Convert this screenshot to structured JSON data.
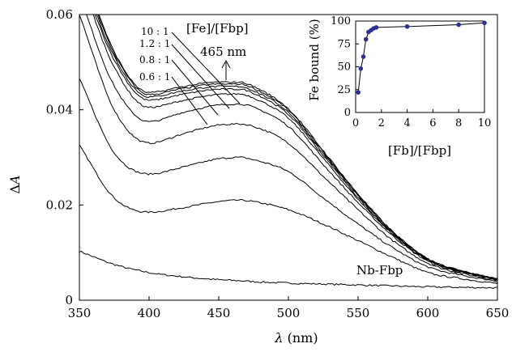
{
  "chart_data": [
    {
      "type": "line",
      "xlabel_symbol": "λ",
      "xlabel_unit": "(nm)",
      "ylabel_symbol": "Δ",
      "ylabel_var": "A",
      "xlim": [
        350,
        650
      ],
      "ylim": [
        0,
        0.06
      ],
      "x_ticks": [
        350,
        400,
        450,
        500,
        550,
        600,
        650
      ],
      "y_ticks": [
        0,
        0.02,
        0.04,
        0.06
      ],
      "x_tick_labels": [
        "350",
        "400",
        "450",
        "500",
        "550",
        "600",
        "650"
      ],
      "y_tick_labels": [
        "0",
        "0.02",
        "0.04",
        "0.06"
      ],
      "grid": false,
      "legend": "none",
      "series_color": "#000000",
      "x_sample": [
        350,
        375,
        400,
        425,
        450,
        465,
        475,
        500,
        525,
        550,
        575,
        600,
        625,
        650
      ],
      "series": [
        {
          "name": "Nb-Fbp",
          "values": [
            0.0103,
            0.0075,
            0.0058,
            0.0049,
            0.0043,
            0.0041,
            0.0039,
            0.0036,
            0.0034,
            0.0032,
            0.003,
            0.0028,
            0.0027,
            0.0026
          ]
        },
        {
          "values": [
            0.0325,
            0.0215,
            0.0185,
            0.0195,
            0.0207,
            0.021,
            0.0207,
            0.019,
            0.016,
            0.0125,
            0.009,
            0.0058,
            0.0045,
            0.0035
          ]
        },
        {
          "values": [
            0.0465,
            0.031,
            0.0265,
            0.028,
            0.0297,
            0.03,
            0.0295,
            0.027,
            0.0215,
            0.016,
            0.011,
            0.007,
            0.0052,
            0.004
          ]
        },
        {
          "values": [
            0.06,
            0.04,
            0.033,
            0.035,
            0.0368,
            0.037,
            0.0365,
            0.033,
            0.026,
            0.019,
            0.0125,
            0.0078,
            0.0056,
            0.0042
          ]
        },
        {
          "values": [
            0.064,
            0.045,
            0.0375,
            0.0395,
            0.041,
            0.0412,
            0.0405,
            0.0365,
            0.0285,
            0.0205,
            0.0135,
            0.0082,
            0.0058,
            0.0043
          ]
        },
        {
          "values": [
            0.068,
            0.049,
            0.0405,
            0.042,
            0.0432,
            0.0433,
            0.0425,
            0.0382,
            0.0298,
            0.0212,
            0.0138,
            0.0084,
            0.0059,
            0.0043
          ]
        },
        {
          "values": [
            0.069,
            0.0505,
            0.042,
            0.0433,
            0.0443,
            0.0443,
            0.0435,
            0.039,
            0.0304,
            0.0216,
            0.014,
            0.0085,
            0.006,
            0.0044
          ]
        },
        {
          "values": [
            0.07,
            0.0512,
            0.0427,
            0.044,
            0.0449,
            0.0449,
            0.044,
            0.0395,
            0.0308,
            0.0219,
            0.0142,
            0.0086,
            0.006,
            0.0044
          ]
        },
        {
          "values": [
            0.071,
            0.0518,
            0.0432,
            0.0445,
            0.0454,
            0.0454,
            0.0445,
            0.0399,
            0.0311,
            0.0221,
            0.0143,
            0.0087,
            0.0061,
            0.0044
          ]
        },
        {
          "values": [
            0.072,
            0.0522,
            0.0436,
            0.0449,
            0.0458,
            0.0458,
            0.0449,
            0.0402,
            0.0314,
            0.0223,
            0.0144,
            0.0087,
            0.0061,
            0.0045
          ]
        }
      ],
      "annotations": {
        "ratio_header": "[Fe]/[Fbp]",
        "ratios": [
          "10 : 1",
          "1.2 : 1",
          "0.8 : 1",
          "0.6 : 1"
        ],
        "peak_label": "465 nm",
        "baseline_label": "Nb-Fbp"
      }
    },
    {
      "type": "scatter",
      "xlabel": "[Fb]/[Fbp]",
      "ylabel": "Fe bound (%)",
      "xlim": [
        0,
        10
      ],
      "ylim": [
        0,
        100
      ],
      "x_ticks": [
        0,
        2,
        4,
        6,
        8,
        10
      ],
      "y_ticks": [
        0,
        25,
        50,
        75,
        100
      ],
      "x_tick_labels": [
        "0",
        "2",
        "4",
        "6",
        "8",
        "10"
      ],
      "y_tick_labels": [
        "0",
        "25",
        "50",
        "75",
        "100"
      ],
      "marker_color": "#2e3192",
      "line_color": "#000000",
      "x": [
        0.2,
        0.4,
        0.6,
        0.8,
        1.0,
        1.2,
        1.4,
        1.6,
        4.0,
        8.0,
        10.0
      ],
      "y": [
        22,
        48,
        61,
        80,
        88,
        90,
        92,
        93,
        94,
        96,
        98
      ]
    }
  ]
}
